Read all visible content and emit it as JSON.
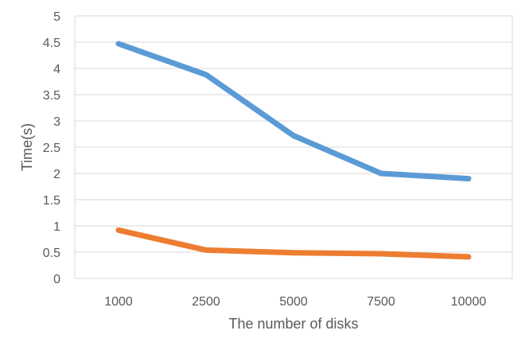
{
  "chart_data": {
    "type": "line",
    "categories": [
      "1000",
      "2500",
      "5000",
      "7500",
      "10000"
    ],
    "series": [
      {
        "values": [
          4.47,
          3.88,
          2.72,
          2.0,
          1.9
        ],
        "color": "#5b9bd5"
      },
      {
        "values": [
          0.92,
          0.54,
          0.49,
          0.47,
          0.41
        ],
        "color": "#ed7d31"
      }
    ],
    "xlabel": "The number of disks",
    "ylabel": "Time(s)",
    "ylim": [
      0,
      5
    ],
    "yticks": [
      "0",
      "0.5",
      "1",
      "1.5",
      "2",
      "2.5",
      "3",
      "3.5",
      "4",
      "4.5",
      "5"
    ],
    "grid": true,
    "legend": "none"
  }
}
